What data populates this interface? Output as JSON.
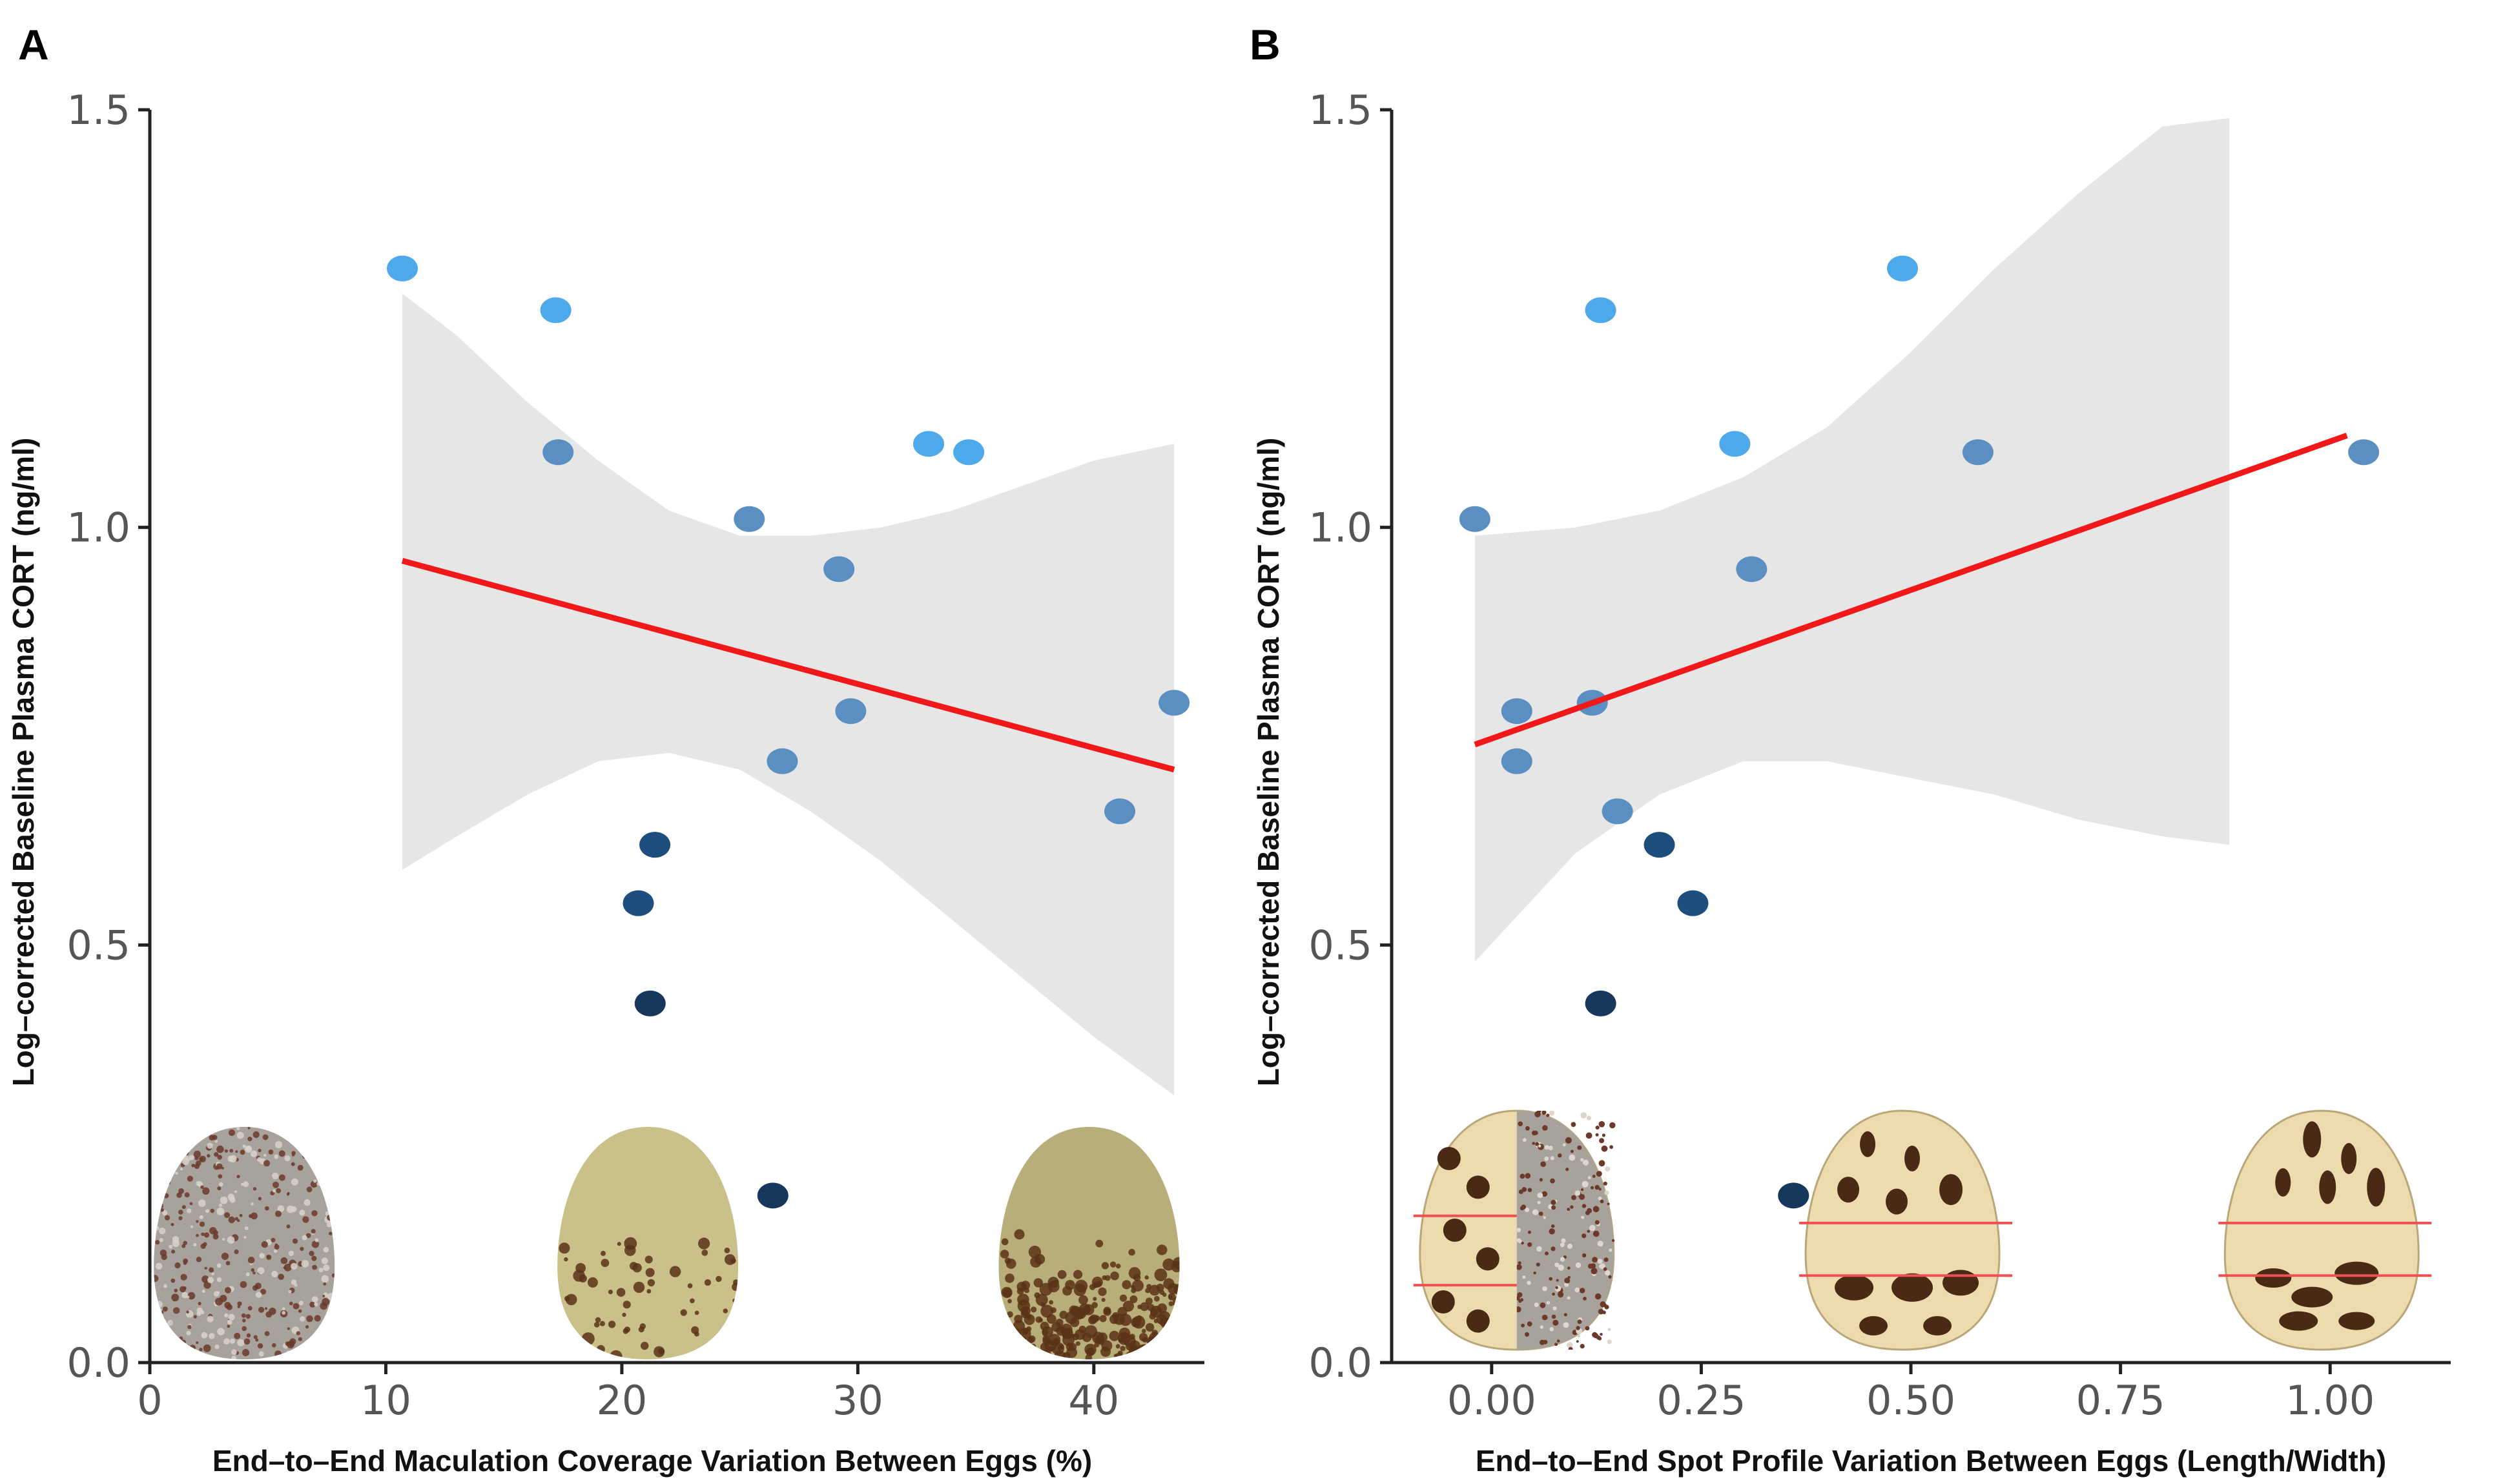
{
  "colors": {
    "regression_line": "#f01818",
    "confidence_band": "#e6e6e6",
    "axis": "#222222",
    "egg_cream": "#ecdcad",
    "egg_spot": "#4a2a14",
    "guide_line": "#f05050",
    "point_light": "#4ea9ea",
    "point_mid": "#5b8fc1",
    "point_dark": "#1e4e7e",
    "point_darkest": "#16385d"
  },
  "chart_data": [
    {
      "panel": "A",
      "type": "scatter",
      "xlabel": "End–to–End Maculation Coverage Variation Between Eggs (%)",
      "ylabel": "Log–corrected Baseline Plasma CORT (ng/ml)",
      "xlim": [
        0,
        44
      ],
      "ylim": [
        0,
        1.5
      ],
      "xticks": [
        0,
        10,
        20,
        30,
        40
      ],
      "xtick_labels": [
        "0",
        "10",
        "20",
        "30",
        "40"
      ],
      "yticks": [
        0,
        0.5,
        1.0,
        1.5
      ],
      "ytick_labels": [
        "0.0",
        "0.5",
        "1.0",
        "1.5"
      ],
      "points": [
        {
          "x": 10.7,
          "y": 1.31,
          "color": "point_light"
        },
        {
          "x": 17.2,
          "y": 1.26,
          "color": "point_light"
        },
        {
          "x": 17.3,
          "y": 1.09,
          "color": "point_mid"
        },
        {
          "x": 25.4,
          "y": 1.01,
          "color": "point_mid"
        },
        {
          "x": 29.2,
          "y": 0.95,
          "color": "point_mid"
        },
        {
          "x": 33.0,
          "y": 1.1,
          "color": "point_light"
        },
        {
          "x": 34.7,
          "y": 1.09,
          "color": "point_light"
        },
        {
          "x": 29.7,
          "y": 0.78,
          "color": "point_mid"
        },
        {
          "x": 26.8,
          "y": 0.72,
          "color": "point_mid"
        },
        {
          "x": 43.4,
          "y": 0.79,
          "color": "point_mid"
        },
        {
          "x": 41.1,
          "y": 0.66,
          "color": "point_mid"
        },
        {
          "x": 21.4,
          "y": 0.62,
          "color": "point_dark"
        },
        {
          "x": 20.7,
          "y": 0.55,
          "color": "point_dark"
        },
        {
          "x": 21.2,
          "y": 0.43,
          "color": "point_darkest"
        },
        {
          "x": 26.4,
          "y": 0.2,
          "color": "point_darkest"
        }
      ],
      "fit_line": {
        "x": [
          10.7,
          43.4
        ],
        "y": [
          0.96,
          0.71
        ]
      },
      "confidence_band": {
        "x": [
          10.7,
          13,
          16,
          19,
          22,
          25,
          28,
          31,
          34,
          37,
          40,
          43.4
        ],
        "upper": [
          1.28,
          1.23,
          1.15,
          1.08,
          1.02,
          0.99,
          0.99,
          1.0,
          1.02,
          1.05,
          1.08,
          1.1
        ],
        "lower": [
          0.59,
          0.63,
          0.68,
          0.72,
          0.73,
          0.71,
          0.66,
          0.6,
          0.53,
          0.46,
          0.39,
          0.32
        ]
      },
      "egg_images": [
        {
          "name": "dense-speckled-egg",
          "x": 4.0,
          "style": "grey_speckled"
        },
        {
          "name": "sparse-spotted-egg",
          "x": 21.1,
          "style": "olive_sparse"
        },
        {
          "name": "end-heavy-spotted-egg",
          "x": 39.8,
          "style": "olive_end_heavy"
        }
      ]
    },
    {
      "panel": "B",
      "type": "scatter",
      "xlabel": "End–to–End Spot Profile Variation Between Eggs (Length/Width)",
      "ylabel": "Log–corrected Baseline Plasma CORT (ng/ml)",
      "xlim": [
        -0.1,
        1.14
      ],
      "ylim": [
        0,
        1.5
      ],
      "xticks": [
        0,
        0.25,
        0.5,
        0.75,
        1.0
      ],
      "xtick_labels": [
        "0.00",
        "0.25",
        "0.50",
        "0.75",
        "1.00"
      ],
      "yticks": [
        0,
        0.5,
        1.0,
        1.5
      ],
      "ytick_labels": [
        "0.0",
        "0.5",
        "1.0",
        "1.5"
      ],
      "points": [
        {
          "x": 0.13,
          "y": 1.26,
          "color": "point_light"
        },
        {
          "x": 0.49,
          "y": 1.31,
          "color": "point_light"
        },
        {
          "x": -0.02,
          "y": 1.01,
          "color": "point_mid"
        },
        {
          "x": 0.29,
          "y": 1.1,
          "color": "point_light"
        },
        {
          "x": 0.58,
          "y": 1.09,
          "color": "point_mid"
        },
        {
          "x": 1.04,
          "y": 1.09,
          "color": "point_mid"
        },
        {
          "x": 0.31,
          "y": 0.95,
          "color": "point_mid"
        },
        {
          "x": 0.03,
          "y": 0.78,
          "color": "point_mid"
        },
        {
          "x": 0.12,
          "y": 0.79,
          "color": "point_mid"
        },
        {
          "x": 0.03,
          "y": 0.72,
          "color": "point_mid"
        },
        {
          "x": 0.15,
          "y": 0.66,
          "color": "point_mid"
        },
        {
          "x": 0.2,
          "y": 0.62,
          "color": "point_dark"
        },
        {
          "x": 0.24,
          "y": 0.55,
          "color": "point_dark"
        },
        {
          "x": 0.13,
          "y": 0.43,
          "color": "point_darkest"
        },
        {
          "x": 0.36,
          "y": 0.2,
          "color": "point_darkest"
        }
      ],
      "fit_line": {
        "x": [
          -0.02,
          1.02
        ],
        "y": [
          0.74,
          1.11
        ]
      },
      "confidence_band": {
        "x": [
          -0.02,
          0.1,
          0.2,
          0.3,
          0.4,
          0.5,
          0.6,
          0.7,
          0.8,
          0.88
        ],
        "upper": [
          0.99,
          1.0,
          1.02,
          1.06,
          1.12,
          1.21,
          1.31,
          1.4,
          1.48,
          1.49
        ],
        "lower": [
          0.48,
          0.61,
          0.68,
          0.72,
          0.72,
          0.7,
          0.68,
          0.65,
          0.63,
          0.62
        ]
      },
      "egg_images": [
        {
          "name": "half-diagram-half-photo-egg",
          "x": 0.03,
          "style": "split_round_spots"
        },
        {
          "name": "round-spots-diagram-egg",
          "x": 0.49,
          "style": "diagram_round_vs_elongated"
        },
        {
          "name": "elongated-spots-diagram-egg",
          "x": 0.99,
          "style": "diagram_vertical_vs_horizontal"
        }
      ]
    }
  ]
}
